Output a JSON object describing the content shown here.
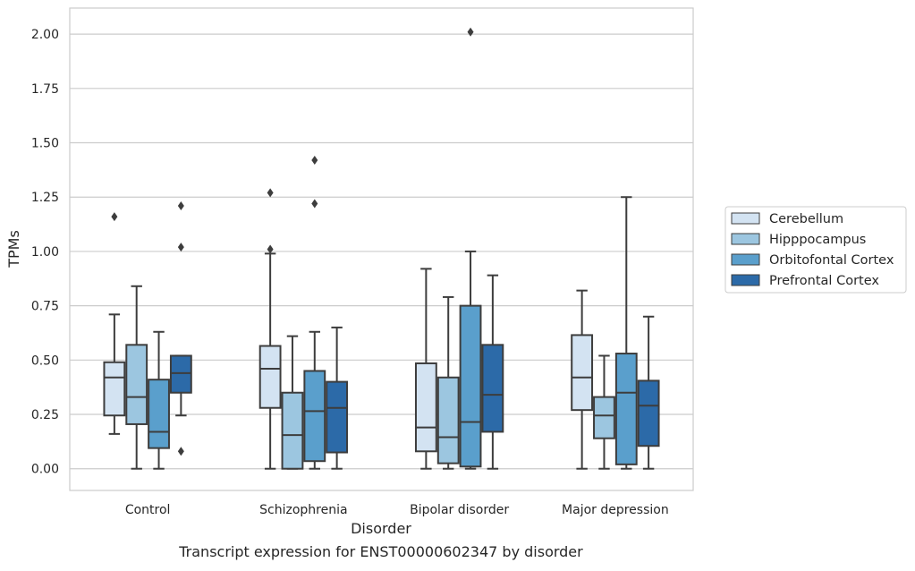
{
  "caption": "Transcript expression for ENST00000602347 by disorder",
  "legend": {
    "placement": "right",
    "entries": [
      {
        "name": "Cerebellum",
        "color": "#d3e3f2"
      },
      {
        "name": "Hipppocampus",
        "color": "#9cc6e0"
      },
      {
        "name": "Orbitofontal Cortex",
        "color": "#5a9fcc"
      },
      {
        "name": "Prefrontal Cortex",
        "color": "#2c6aa8"
      }
    ]
  },
  "chart_data": {
    "type": "box",
    "xlabel": "Disorder",
    "ylabel": "TPMs",
    "ylim": [
      -0.1,
      2.12
    ],
    "yticks": [
      "0.00",
      "0.25",
      "0.50",
      "0.75",
      "1.00",
      "1.25",
      "1.50",
      "1.75",
      "2.00"
    ],
    "grid": "horizontal",
    "categories": [
      "Control",
      "Schizophrenia",
      "Bipolar disorder",
      "Major depression"
    ],
    "series": [
      {
        "name": "Cerebellum",
        "color": "#d3e3f2",
        "boxes": [
          {
            "whislo": 0.16,
            "q1": 0.245,
            "med": 0.42,
            "q3": 0.49,
            "whishi": 0.71,
            "fliers": [
              1.16
            ]
          },
          {
            "whislo": 0.0,
            "q1": 0.28,
            "med": 0.46,
            "q3": 0.565,
            "whishi": 0.99,
            "fliers": [
              1.01,
              1.27
            ]
          },
          {
            "whislo": 0.0,
            "q1": 0.08,
            "med": 0.19,
            "q3": 0.485,
            "whishi": 0.92,
            "fliers": []
          },
          {
            "whislo": 0.0,
            "q1": 0.27,
            "med": 0.42,
            "q3": 0.615,
            "whishi": 0.82,
            "fliers": []
          }
        ]
      },
      {
        "name": "Hipppocampus",
        "color": "#9cc6e0",
        "boxes": [
          {
            "whislo": 0.0,
            "q1": 0.205,
            "med": 0.33,
            "q3": 0.57,
            "whishi": 0.84,
            "fliers": []
          },
          {
            "whislo": 0.0,
            "q1": 0.0,
            "med": 0.155,
            "q3": 0.35,
            "whishi": 0.61,
            "fliers": []
          },
          {
            "whislo": 0.0,
            "q1": 0.025,
            "med": 0.145,
            "q3": 0.42,
            "whishi": 0.79,
            "fliers": []
          },
          {
            "whislo": 0.0,
            "q1": 0.14,
            "med": 0.245,
            "q3": 0.33,
            "whishi": 0.52,
            "fliers": []
          }
        ]
      },
      {
        "name": "Orbitofontal Cortex",
        "color": "#5a9fcc",
        "boxes": [
          {
            "whislo": 0.0,
            "q1": 0.095,
            "med": 0.17,
            "q3": 0.41,
            "whishi": 0.63,
            "fliers": []
          },
          {
            "whislo": 0.0,
            "q1": 0.035,
            "med": 0.265,
            "q3": 0.45,
            "whishi": 0.63,
            "fliers": [
              1.22,
              1.42
            ]
          },
          {
            "whislo": 0.0,
            "q1": 0.01,
            "med": 0.215,
            "q3": 0.75,
            "whishi": 1.0,
            "fliers": [
              2.01
            ]
          },
          {
            "whislo": 0.0,
            "q1": 0.02,
            "med": 0.35,
            "q3": 0.53,
            "whishi": 1.25,
            "fliers": []
          }
        ]
      },
      {
        "name": "Prefrontal Cortex",
        "color": "#2c6aa8",
        "boxes": [
          {
            "whislo": 0.245,
            "q1": 0.35,
            "med": 0.44,
            "q3": 0.52,
            "whishi": 0.52,
            "fliers": [
              0.08,
              1.02,
              1.21
            ]
          },
          {
            "whislo": 0.0,
            "q1": 0.075,
            "med": 0.28,
            "q3": 0.4,
            "whishi": 0.65,
            "fliers": []
          },
          {
            "whislo": 0.0,
            "q1": 0.17,
            "med": 0.34,
            "q3": 0.57,
            "whishi": 0.89,
            "fliers": []
          },
          {
            "whislo": 0.0,
            "q1": 0.105,
            "med": 0.29,
            "q3": 0.405,
            "whishi": 0.7,
            "fliers": []
          }
        ]
      }
    ]
  }
}
